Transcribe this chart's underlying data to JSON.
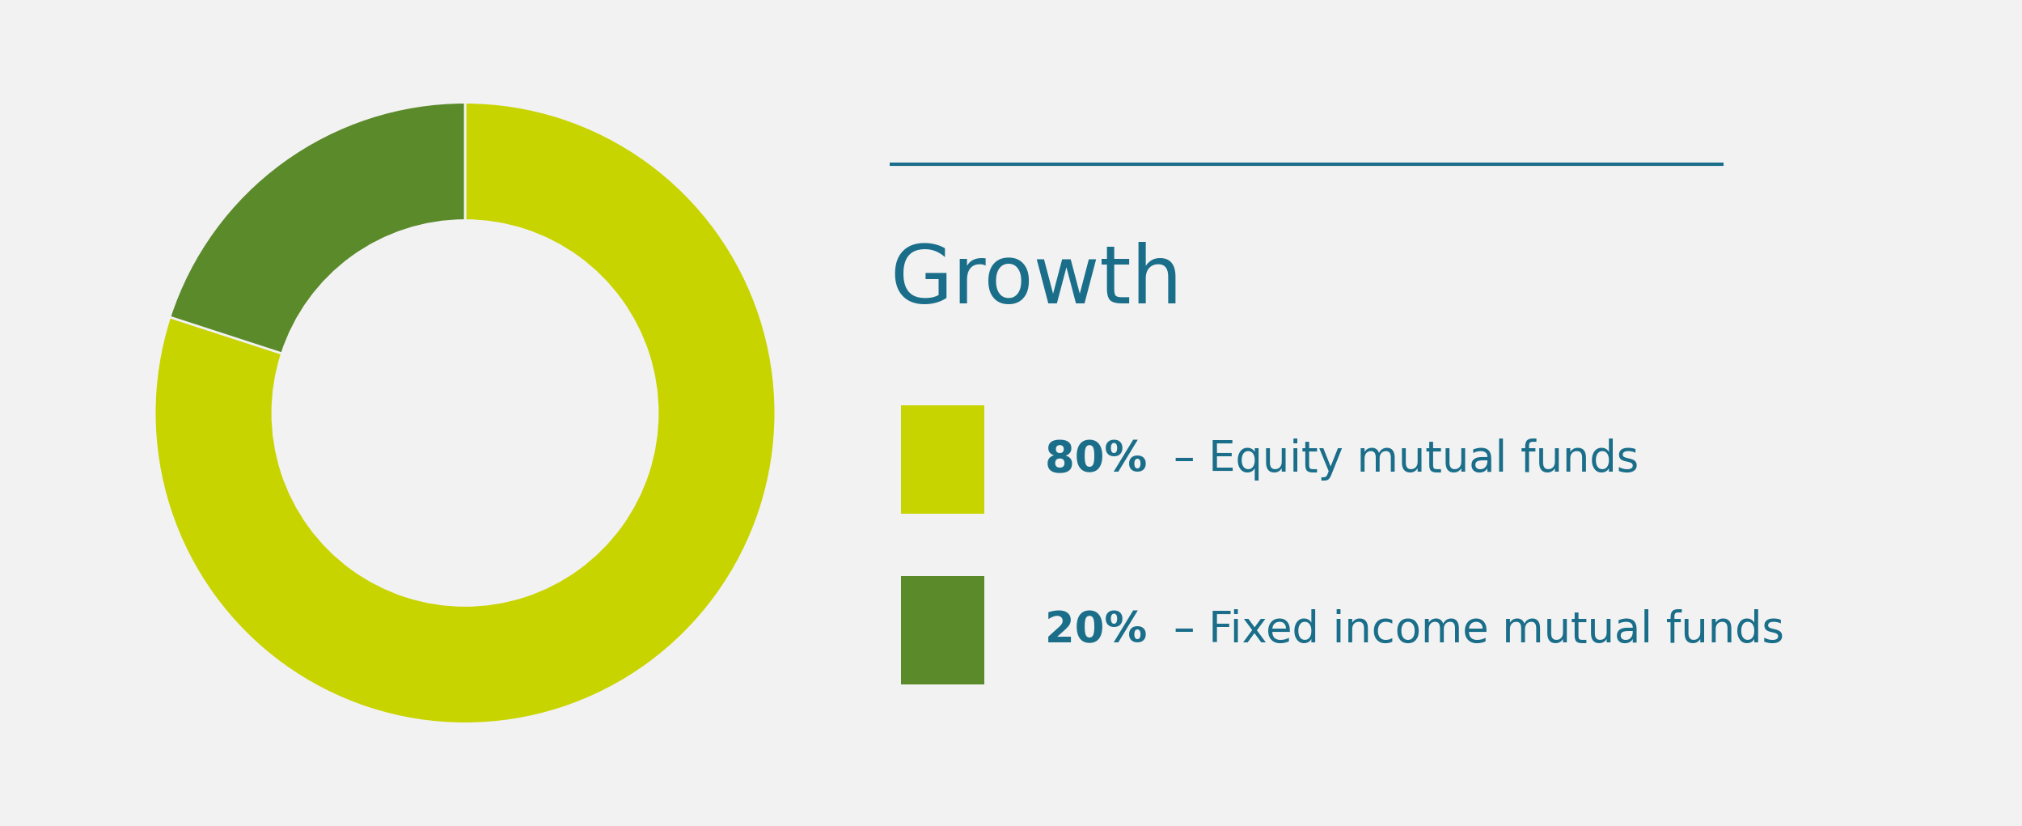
{
  "title": "Growth",
  "slices": [
    80,
    20
  ],
  "slice_order": "equity_first",
  "colors": [
    "#c8d400",
    "#5a8a2a"
  ],
  "background_color": "#f2f2f2",
  "title_color": "#1a6e8a",
  "line_color": "#1a6e8a",
  "legend": [
    {
      "pct": "80%",
      "label": "– Equity mutual funds",
      "color": "#c8d400"
    },
    {
      "pct": "20%",
      "label": "– Fixed income mutual funds",
      "color": "#5a8a2a"
    }
  ],
  "start_angle": 90,
  "figsize": [
    25.0,
    10.21
  ],
  "dpi": 100
}
